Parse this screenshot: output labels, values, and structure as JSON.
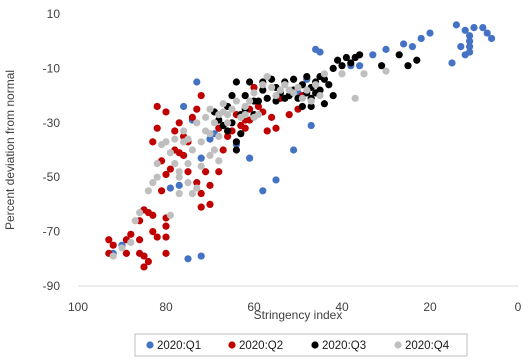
{
  "chart_data": {
    "type": "scatter",
    "xlabel": "Stringency index",
    "ylabel": "Percent deviation from normal",
    "xlim": [
      100,
      0
    ],
    "ylim": [
      -90,
      10
    ],
    "x_reversed": true,
    "x_ticks": [
      "100",
      "80",
      "60",
      "40",
      "20",
      "0"
    ],
    "x_tick_values": [
      100,
      80,
      60,
      40,
      20,
      0
    ],
    "y_ticks": [
      "10",
      "-10",
      "-30",
      "-50",
      "-70",
      "-90"
    ],
    "y_tick_values": [
      10,
      -10,
      -30,
      -50,
      -70,
      -90
    ],
    "grid": false,
    "legend_position": "bottom",
    "series": [
      {
        "name": "2020:Q1",
        "color": "#4472C4",
        "points": [
          [
            14,
            6
          ],
          [
            12,
            4
          ],
          [
            10,
            5
          ],
          [
            8,
            5
          ],
          [
            7,
            3
          ],
          [
            6,
            1
          ],
          [
            11,
            2
          ],
          [
            11,
            0
          ],
          [
            11,
            -2
          ],
          [
            11,
            -4
          ],
          [
            12,
            -5
          ],
          [
            13,
            -2
          ],
          [
            15,
            -8
          ],
          [
            20,
            3
          ],
          [
            22,
            1
          ],
          [
            24,
            -2
          ],
          [
            26,
            -1
          ],
          [
            30,
            -3
          ],
          [
            33,
            -5
          ],
          [
            36,
            -9
          ],
          [
            38,
            -9
          ],
          [
            45,
            -4
          ],
          [
            46,
            -3
          ],
          [
            48,
            -14
          ],
          [
            50,
            -19
          ],
          [
            47,
            -31
          ],
          [
            51,
            -40
          ],
          [
            55,
            -51
          ],
          [
            58,
            -55
          ],
          [
            61,
            -43
          ],
          [
            64,
            -38
          ],
          [
            69,
            -34
          ],
          [
            70,
            -36
          ],
          [
            72,
            -43
          ],
          [
            74,
            -29
          ],
          [
            76,
            -24
          ],
          [
            73,
            -15
          ],
          [
            77,
            -53
          ],
          [
            79,
            -54
          ],
          [
            75,
            -80
          ],
          [
            72,
            -79
          ],
          [
            90,
            -75
          ],
          [
            92,
            -78
          ]
        ]
      },
      {
        "name": "2020:Q2",
        "color": "#C00000",
        "points": [
          [
            93,
            -73
          ],
          [
            93,
            -78
          ],
          [
            92,
            -75
          ],
          [
            89,
            -73
          ],
          [
            89,
            -78
          ],
          [
            88,
            -71
          ],
          [
            86,
            -73
          ],
          [
            86,
            -78
          ],
          [
            85,
            -79
          ],
          [
            85,
            -83
          ],
          [
            84,
            -81
          ],
          [
            86,
            -66
          ],
          [
            85,
            -62
          ],
          [
            84,
            -63
          ],
          [
            83,
            -64
          ],
          [
            83,
            -70
          ],
          [
            82,
            -72
          ],
          [
            80,
            -65
          ],
          [
            80,
            -68
          ],
          [
            80,
            -72
          ],
          [
            80,
            -78
          ],
          [
            81,
            -55
          ],
          [
            80,
            -49
          ],
          [
            81,
            -44
          ],
          [
            79,
            -47
          ],
          [
            78,
            -40
          ],
          [
            77,
            -41
          ],
          [
            76,
            -42
          ],
          [
            78,
            -33
          ],
          [
            77,
            -30
          ],
          [
            76,
            -35
          ],
          [
            75,
            -37
          ],
          [
            74,
            -28
          ],
          [
            73,
            -25
          ],
          [
            72,
            -20
          ],
          [
            75,
            -48
          ],
          [
            73,
            -52
          ],
          [
            71,
            -48
          ],
          [
            72,
            -56
          ],
          [
            70,
            -53
          ],
          [
            72,
            -61
          ],
          [
            70,
            -60
          ],
          [
            68,
            -48
          ],
          [
            68,
            -32
          ],
          [
            67,
            -40
          ],
          [
            66,
            -35
          ],
          [
            65,
            -33
          ],
          [
            64,
            -27
          ],
          [
            63,
            -31
          ],
          [
            62,
            -32
          ],
          [
            61,
            -29
          ],
          [
            61,
            -25
          ],
          [
            60,
            -17
          ],
          [
            59,
            -24
          ],
          [
            57,
            -33
          ],
          [
            56,
            -28
          ],
          [
            54,
            -21
          ],
          [
            52,
            -27
          ],
          [
            50,
            -25
          ],
          [
            49,
            -20
          ],
          [
            82,
            -24
          ],
          [
            82,
            -32
          ],
          [
            83,
            -37
          ],
          [
            80,
            -26
          ],
          [
            62,
            -29
          ],
          [
            55,
            -32
          ],
          [
            58,
            -26
          ]
        ]
      },
      {
        "name": "2020:Q3",
        "color": "#000000",
        "points": [
          [
            69,
            -26
          ],
          [
            68,
            -29
          ],
          [
            67,
            -31
          ],
          [
            66,
            -24
          ],
          [
            66,
            -33
          ],
          [
            65,
            -30
          ],
          [
            64,
            -37
          ],
          [
            64,
            -40
          ],
          [
            63,
            -27
          ],
          [
            62,
            -20
          ],
          [
            61,
            -15
          ],
          [
            60,
            -22
          ],
          [
            59,
            -22
          ],
          [
            58,
            -18
          ],
          [
            57,
            -21
          ],
          [
            56,
            -14
          ],
          [
            55,
            -17
          ],
          [
            54,
            -19
          ],
          [
            53,
            -15
          ],
          [
            52,
            -20
          ],
          [
            51,
            -18
          ],
          [
            50,
            -21
          ],
          [
            49,
            -24
          ],
          [
            48,
            -19
          ],
          [
            47,
            -17
          ],
          [
            47,
            -21
          ],
          [
            46,
            -15
          ],
          [
            45,
            -13
          ],
          [
            44,
            -14
          ],
          [
            43,
            -16
          ],
          [
            42,
            -10
          ],
          [
            42,
            -20
          ],
          [
            41,
            -7
          ],
          [
            40,
            -9
          ],
          [
            39,
            -6
          ],
          [
            38,
            -8
          ],
          [
            37,
            -6
          ],
          [
            36,
            -5
          ],
          [
            31,
            -9
          ],
          [
            27,
            -5
          ],
          [
            25,
            -9
          ],
          [
            23,
            -7
          ],
          [
            64,
            -15
          ],
          [
            65,
            -20
          ],
          [
            58,
            -15
          ],
          [
            60,
            -27
          ],
          [
            62,
            -25
          ],
          [
            63,
            -34
          ],
          [
            53,
            -21
          ],
          [
            49,
            -16
          ],
          [
            51,
            -14
          ],
          [
            48,
            -13
          ],
          [
            46,
            -19
          ],
          [
            45,
            -18
          ],
          [
            44,
            -23
          ],
          [
            47,
            -24
          ],
          [
            55,
            -22
          ]
        ]
      },
      {
        "name": "2020:Q4",
        "color": "#BFBFBF",
        "points": [
          [
            92,
            -79
          ],
          [
            90,
            -76
          ],
          [
            88,
            -74
          ],
          [
            87,
            -66
          ],
          [
            86,
            -63
          ],
          [
            84,
            -55
          ],
          [
            83,
            -52
          ],
          [
            82,
            -50
          ],
          [
            82,
            -45
          ],
          [
            81,
            -38
          ],
          [
            80,
            -37
          ],
          [
            79,
            -41
          ],
          [
            78,
            -36
          ],
          [
            78,
            -45
          ],
          [
            77,
            -48
          ],
          [
            77,
            -50
          ],
          [
            76,
            -37
          ],
          [
            76,
            -33
          ],
          [
            75,
            -45
          ],
          [
            75,
            -52
          ],
          [
            74,
            -56
          ],
          [
            74,
            -40
          ],
          [
            73,
            -30
          ],
          [
            72,
            -46
          ],
          [
            72,
            -37
          ],
          [
            71,
            -33
          ],
          [
            71,
            -28
          ],
          [
            70,
            -42
          ],
          [
            70,
            -25
          ],
          [
            69,
            -40
          ],
          [
            69,
            -30
          ],
          [
            68,
            -44
          ],
          [
            68,
            -27
          ],
          [
            67,
            -23
          ],
          [
            66,
            -27
          ],
          [
            66,
            -30
          ],
          [
            65,
            -25
          ],
          [
            64,
            -22
          ],
          [
            63,
            -28
          ],
          [
            62,
            -24
          ],
          [
            61,
            -22
          ],
          [
            60,
            -19
          ],
          [
            59,
            -27
          ],
          [
            58,
            -16
          ],
          [
            57,
            -13
          ],
          [
            56,
            -17
          ],
          [
            55,
            -20
          ],
          [
            54,
            -18
          ],
          [
            53,
            -16
          ],
          [
            52,
            -18
          ],
          [
            51,
            -19
          ],
          [
            50,
            -17
          ],
          [
            49,
            -21
          ],
          [
            48,
            -18
          ],
          [
            47,
            -22
          ],
          [
            46,
            -16
          ],
          [
            45,
            -20
          ],
          [
            44,
            -12
          ],
          [
            40,
            -12
          ],
          [
            37,
            -21
          ],
          [
            35,
            -12
          ],
          [
            30,
            -11
          ],
          [
            73,
            -54
          ],
          [
            79,
            -64
          ],
          [
            70,
            -34
          ],
          [
            68,
            -35
          ],
          [
            67,
            -26
          ],
          [
            62,
            -27
          ],
          [
            60,
            -28
          ],
          [
            75,
            -36
          ],
          [
            77,
            -56
          ]
        ]
      }
    ]
  }
}
